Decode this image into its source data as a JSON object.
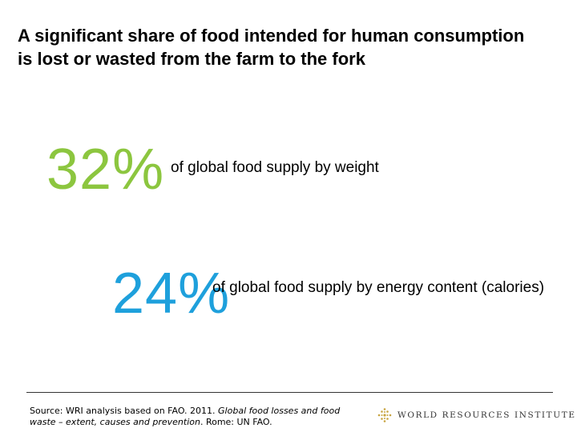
{
  "slide": {
    "title_line1": "A significant share of food intended for human consumption",
    "title_line2": "is lost or wasted from the farm to the fork"
  },
  "stats": [
    {
      "value": "32%",
      "description": "of global food supply by weight",
      "color": "#8cc63f"
    },
    {
      "value": "24%",
      "description": "of global food supply by energy content (calories)",
      "color": "#1ea0dc"
    }
  ],
  "footer": {
    "source_prefix": "Source: WRI analysis based on FAO. 2011. ",
    "source_italic": "Global food losses and food waste – extent, causes and prevention",
    "source_suffix": ". Rome: UN FAO.",
    "logo_icon": "wri-logo-icon",
    "logo_text": "WORLD RESOURCES INSTITUTE",
    "logo_color": "#c8a440"
  }
}
